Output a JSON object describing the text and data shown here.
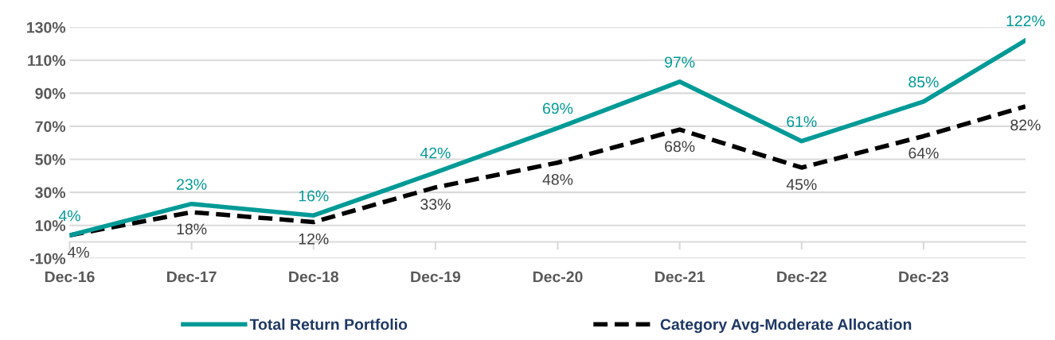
{
  "chart_data": {
    "type": "line",
    "x": [
      "2016-12",
      "2017-12",
      "2018-12",
      "2019-12",
      "2020-12",
      "2021-12",
      "2022-12",
      "2023-12",
      "2024-10"
    ],
    "series": [
      {
        "name": "Total Return Portfolio",
        "color": "#009a96",
        "line_style": "solid",
        "values": [
          4,
          23,
          16,
          42,
          69,
          97,
          61,
          85,
          122
        ],
        "value_labels": [
          "4%",
          "23%",
          "16%",
          "42%",
          "69%",
          "97%",
          "61%",
          "85%",
          "122%"
        ]
      },
      {
        "name": "Category Avg-Moderate Allocation",
        "color": "#000000",
        "line_style": "dashed",
        "values": [
          4,
          18,
          12,
          33,
          48,
          68,
          45,
          64,
          82
        ],
        "value_labels": [
          "4%",
          "18%",
          "12%",
          "33%",
          "48%",
          "68%",
          "45%",
          "64%",
          "82%"
        ]
      }
    ],
    "xlim": [
      "2016-12",
      "2024-10"
    ],
    "xticks": [
      {
        "value": "2016-12",
        "label": "Dec-16"
      },
      {
        "value": "2017-12",
        "label": "Dec-17"
      },
      {
        "value": "2018-12",
        "label": "Dec-18"
      },
      {
        "value": "2019-12",
        "label": "Dec-19"
      },
      {
        "value": "2020-12",
        "label": "Dec-20"
      },
      {
        "value": "2021-12",
        "label": "Dec-21"
      },
      {
        "value": "2022-12",
        "label": "Dec-22"
      },
      {
        "value": "2023-12",
        "label": "Dec-23"
      }
    ],
    "ylim": [
      -10,
      130
    ],
    "yticks": [
      {
        "value": -10,
        "label": "-10%"
      },
      {
        "value": 10,
        "label": "10%"
      },
      {
        "value": 30,
        "label": "30%"
      },
      {
        "value": 50,
        "label": "50%"
      },
      {
        "value": 70,
        "label": "70%"
      },
      {
        "value": 90,
        "label": "90%"
      },
      {
        "value": 110,
        "label": "110%"
      },
      {
        "value": 130,
        "label": "130%"
      }
    ],
    "grid": "y",
    "legend": "bottom",
    "marker": "none"
  }
}
